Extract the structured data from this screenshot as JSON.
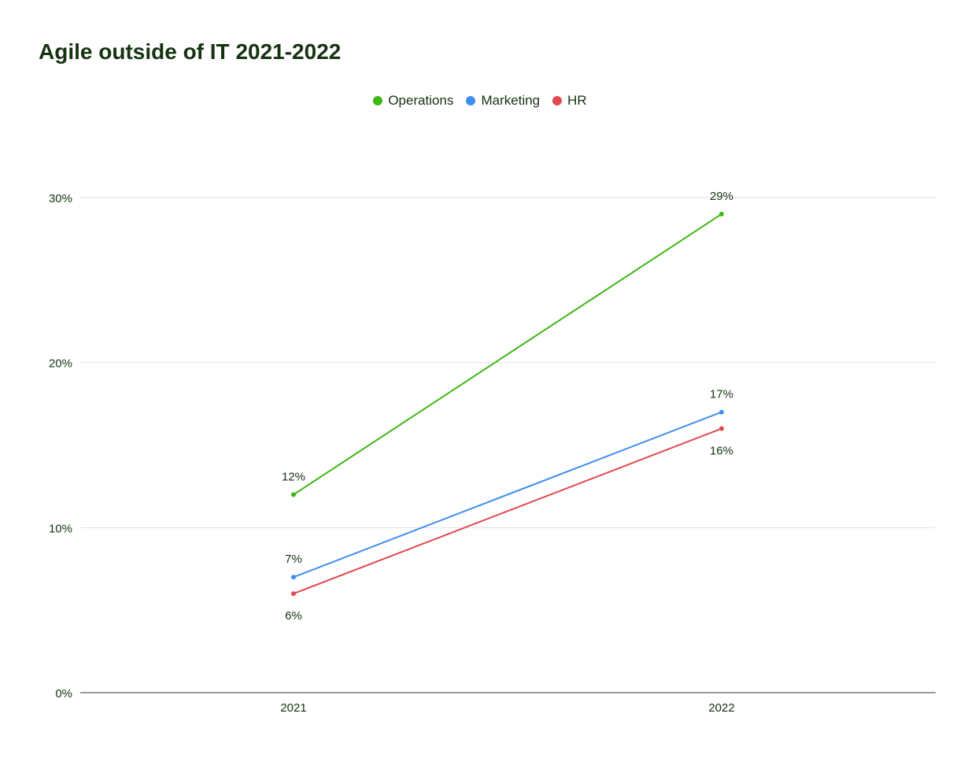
{
  "chart_data": {
    "type": "line",
    "title": "Agile outside of IT 2021-2022",
    "x": [
      "2021",
      "2022"
    ],
    "series": [
      {
        "name": "Operations",
        "values": [
          12,
          29
        ],
        "labels": [
          "12%",
          "29%"
        ],
        "color": "#3fb614"
      },
      {
        "name": "Marketing",
        "values": [
          7,
          17
        ],
        "labels": [
          "7%",
          "17%"
        ],
        "color": "#3f8ef0"
      },
      {
        "name": "HR",
        "values": [
          6,
          16
        ],
        "labels": [
          "6%",
          "16%"
        ],
        "color": "#e04a50"
      }
    ],
    "ylim": [
      0,
      30
    ],
    "yticks": [
      0,
      10,
      20,
      30
    ],
    "ytick_labels": [
      "0%",
      "10%",
      "20%",
      "30%"
    ],
    "xlabel": "",
    "ylabel": "",
    "grid": true,
    "legend": "top-center"
  }
}
